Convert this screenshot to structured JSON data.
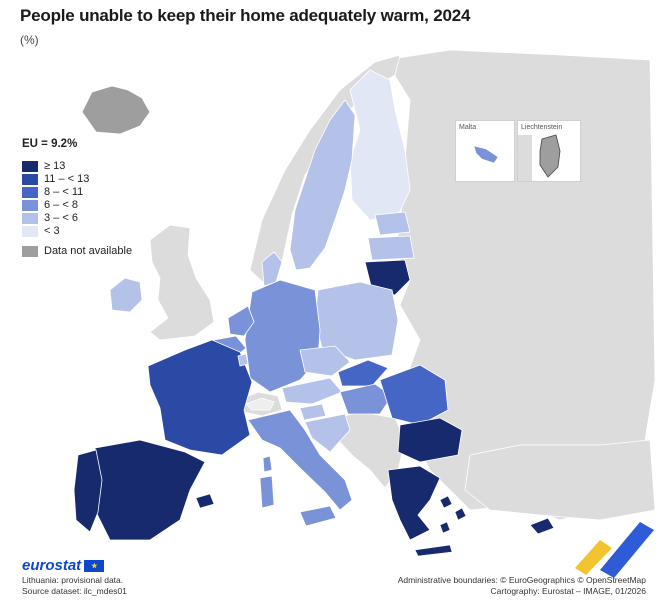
{
  "title": "People unable to keep their home adequately warm, 2024",
  "subtitle": "(%)",
  "legend": {
    "eu_value": "EU = 9.2%",
    "classes": [
      {
        "label": "≥ 13",
        "color": "#172a6e"
      },
      {
        "label": "11 – < 13",
        "color": "#2a4aa6"
      },
      {
        "label": "8 – < 11",
        "color": "#4566c4"
      },
      {
        "label": "6 – < 8",
        "color": "#7a93d8"
      },
      {
        "label": "3 – < 6",
        "color": "#b4c2ea"
      },
      {
        "label": "< 3",
        "color": "#e2e7f6"
      }
    ],
    "not_available": {
      "label": "Data not available",
      "color": "#9e9e9e"
    }
  },
  "insets": {
    "malta": "Malta",
    "liechtenstein": "Liechtenstein"
  },
  "branding": {
    "logo": "eurostat"
  },
  "footer": {
    "note": "Lithuania: provisional data.",
    "source": "Source dataset: ilc_mdes01",
    "boundaries": "Administrative boundaries: © EuroGeographics © OpenStreetMap",
    "cartography": "Cartography: Eurostat – IMAGE, 01/2026"
  },
  "colors": {
    "sea": "#ffffff",
    "non_eu": "#dcdcdc",
    "border": "#ffffff"
  }
}
